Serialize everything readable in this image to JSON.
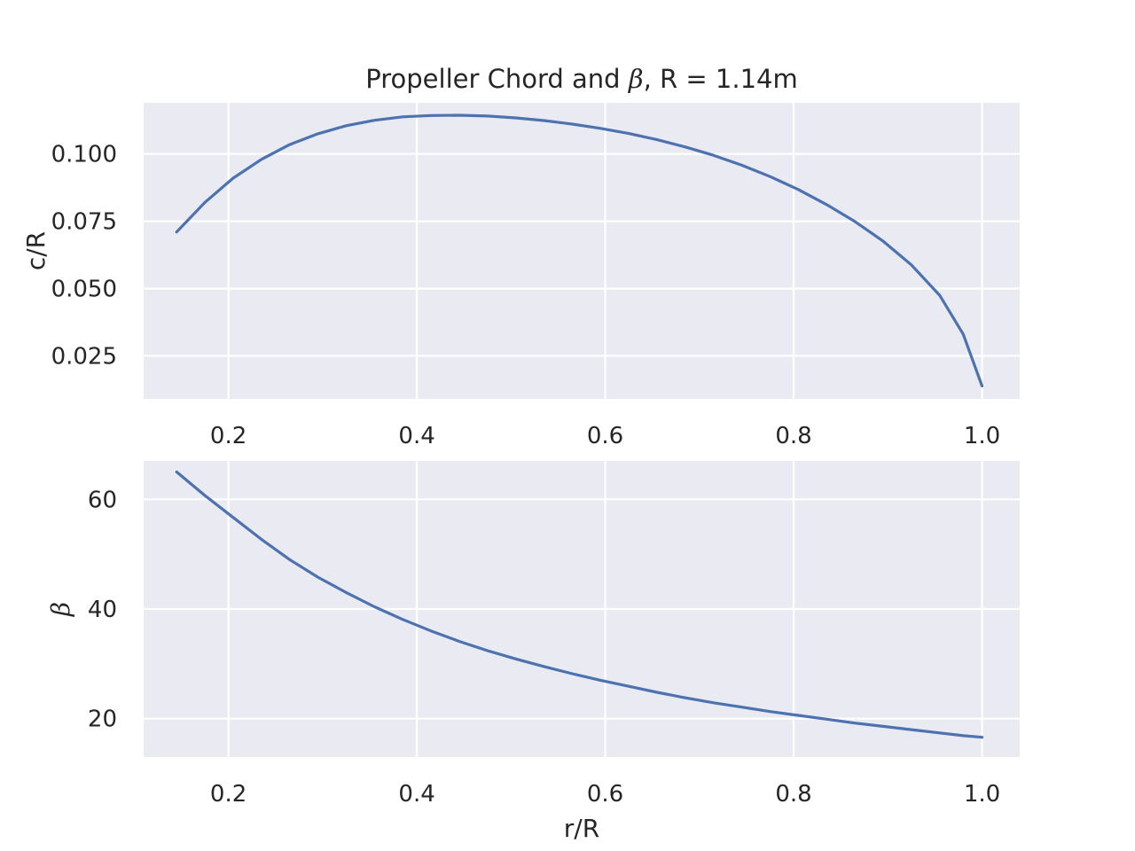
{
  "chart_data": [
    {
      "type": "line",
      "title": {
        "prefix": "Propeller Chord and ",
        "symbol": "β",
        "suffix": ", R = 1.14m"
      },
      "xlabel": "",
      "ylabel": "c/R",
      "xlim": [
        0.11,
        1.04
      ],
      "ylim": [
        0.009,
        0.119
      ],
      "xticks": [
        0.2,
        0.4,
        0.6,
        0.8,
        1.0
      ],
      "xtick_labels": [
        "0.2",
        "0.4",
        "0.6",
        "0.8",
        "1.0"
      ],
      "yticks": [
        0.025,
        0.05,
        0.075,
        0.1
      ],
      "ytick_labels": [
        "0.025",
        "0.050",
        "0.075",
        "0.100"
      ],
      "grid": true,
      "color": "#4c72b0",
      "series": [
        {
          "x": [
            0.145,
            0.175,
            0.205,
            0.235,
            0.265,
            0.295,
            0.325,
            0.355,
            0.385,
            0.415,
            0.445,
            0.475,
            0.505,
            0.535,
            0.565,
            0.595,
            0.625,
            0.655,
            0.685,
            0.715,
            0.745,
            0.775,
            0.805,
            0.835,
            0.865,
            0.895,
            0.925,
            0.955,
            0.98,
            1.0
          ],
          "y": [
            0.071,
            0.082,
            0.091,
            0.098,
            0.1035,
            0.1075,
            0.1105,
            0.1125,
            0.1138,
            0.1143,
            0.1144,
            0.1141,
            0.1134,
            0.1124,
            0.1111,
            0.1095,
            0.1076,
            0.1053,
            0.1026,
            0.0995,
            0.0958,
            0.0916,
            0.0868,
            0.0812,
            0.0749,
            0.0676,
            0.0588,
            0.0475,
            0.033,
            0.0138
          ]
        }
      ]
    },
    {
      "type": "line",
      "title": "",
      "xlabel": "r/R",
      "ylabel": "β",
      "xlim": [
        0.11,
        1.04
      ],
      "ylim": [
        13,
        67
      ],
      "xticks": [
        0.2,
        0.4,
        0.6,
        0.8,
        1.0
      ],
      "xtick_labels": [
        "0.2",
        "0.4",
        "0.6",
        "0.8",
        "1.0"
      ],
      "yticks": [
        20,
        40,
        60
      ],
      "ytick_labels": [
        "20",
        "40",
        "60"
      ],
      "grid": true,
      "color": "#4c72b0",
      "series": [
        {
          "x": [
            0.145,
            0.175,
            0.205,
            0.235,
            0.265,
            0.295,
            0.325,
            0.355,
            0.385,
            0.415,
            0.445,
            0.475,
            0.505,
            0.535,
            0.565,
            0.595,
            0.625,
            0.655,
            0.685,
            0.715,
            0.745,
            0.775,
            0.805,
            0.835,
            0.865,
            0.895,
            0.925,
            0.955,
            0.98,
            1.0
          ],
          "y": [
            65.0,
            60.7,
            56.7,
            52.7,
            49.0,
            45.8,
            43.0,
            40.4,
            38.1,
            36.0,
            34.1,
            32.4,
            30.9,
            29.5,
            28.2,
            27.0,
            25.9,
            24.8,
            23.8,
            22.9,
            22.1,
            21.3,
            20.6,
            19.9,
            19.2,
            18.6,
            18.0,
            17.4,
            16.9,
            16.6
          ]
        }
      ]
    }
  ]
}
